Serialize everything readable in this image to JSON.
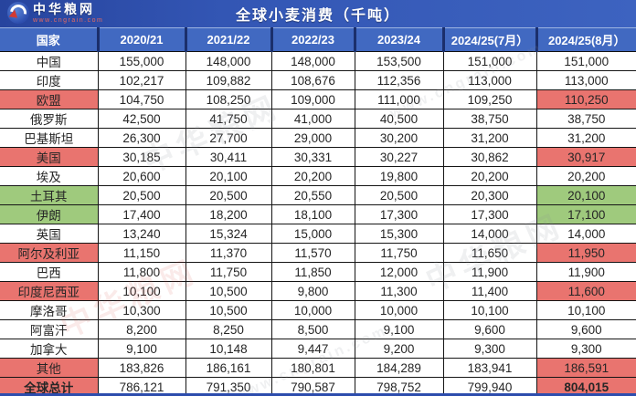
{
  "header": {
    "logo_text": "中华粮网",
    "logo_url": "www.cngrain.com",
    "title": "全球小麦消费（千吨）"
  },
  "watermark": {
    "text": "中华粮网",
    "url": "www.cngrain.com"
  },
  "colors": {
    "title_band_blue": "#3356b4",
    "header_row_blue": "#4169c1",
    "increase_pink": "#e9746f",
    "decrease_green": "#9fca7d"
  },
  "chart_data": {
    "type": "table",
    "title": "全球小麦消费（千吨）",
    "columns": [
      "国家",
      "2020/21",
      "2021/22",
      "2022/23",
      "2023/24",
      "2024/25(7月）",
      "2024/25(8月）"
    ],
    "rows": [
      {
        "country": "中国",
        "values": [
          "155,000",
          "148,000",
          "148,000",
          "153,500",
          "151,000",
          "151,000"
        ],
        "highlight": "none"
      },
      {
        "country": "印度",
        "values": [
          "102,217",
          "109,882",
          "108,676",
          "112,356",
          "113,000",
          "113,000"
        ],
        "highlight": "none"
      },
      {
        "country": "欧盟",
        "values": [
          "104,750",
          "108,250",
          "109,000",
          "111,000",
          "109,250",
          "110,250"
        ],
        "highlight": "up"
      },
      {
        "country": "俄罗斯",
        "values": [
          "42,500",
          "41,750",
          "41,000",
          "40,500",
          "38,750",
          "38,750"
        ],
        "highlight": "none"
      },
      {
        "country": "巴基斯坦",
        "values": [
          "26,300",
          "27,700",
          "29,000",
          "30,200",
          "31,200",
          "31,200"
        ],
        "highlight": "none"
      },
      {
        "country": "美国",
        "values": [
          "30,185",
          "30,411",
          "30,331",
          "30,227",
          "30,862",
          "30,917"
        ],
        "highlight": "up"
      },
      {
        "country": "埃及",
        "values": [
          "20,600",
          "20,100",
          "20,200",
          "19,800",
          "20,200",
          "20,200"
        ],
        "highlight": "none"
      },
      {
        "country": "土耳其",
        "values": [
          "20,500",
          "20,500",
          "20,550",
          "20,500",
          "20,300",
          "20,100"
        ],
        "highlight": "down"
      },
      {
        "country": "伊朗",
        "values": [
          "17,400",
          "18,200",
          "18,100",
          "17,300",
          "17,300",
          "17,100"
        ],
        "highlight": "down"
      },
      {
        "country": "英国",
        "values": [
          "13,240",
          "15,324",
          "15,000",
          "15,300",
          "14,000",
          "14,000"
        ],
        "highlight": "none"
      },
      {
        "country": "阿尔及利亚",
        "values": [
          "11,150",
          "11,370",
          "11,570",
          "11,750",
          "11,650",
          "11,950"
        ],
        "highlight": "up"
      },
      {
        "country": "巴西",
        "values": [
          "11,800",
          "11,750",
          "11,850",
          "12,000",
          "11,900",
          "11,900"
        ],
        "highlight": "none"
      },
      {
        "country": "印度尼西亚",
        "values": [
          "10,100",
          "10,500",
          "9,800",
          "11,300",
          "11,400",
          "11,600"
        ],
        "highlight": "up"
      },
      {
        "country": "摩洛哥",
        "values": [
          "10,300",
          "10,500",
          "10,000",
          "10,000",
          "10,100",
          "10,100"
        ],
        "highlight": "none"
      },
      {
        "country": "阿富汗",
        "values": [
          "8,200",
          "8,250",
          "8,500",
          "9,100",
          "9,600",
          "9,600"
        ],
        "highlight": "none"
      },
      {
        "country": "加拿大",
        "values": [
          "9,100",
          "10,148",
          "9,447",
          "9,200",
          "9,300",
          "9,300"
        ],
        "highlight": "none"
      },
      {
        "country": "其他",
        "values": [
          "183,826",
          "186,161",
          "180,801",
          "184,289",
          "183,941",
          "186,591"
        ],
        "highlight": "up"
      },
      {
        "country": "全球总计",
        "values": [
          "786,121",
          "791,350",
          "790,587",
          "798,752",
          "799,940",
          "804,015"
        ],
        "highlight": "up",
        "total": true
      }
    ]
  }
}
